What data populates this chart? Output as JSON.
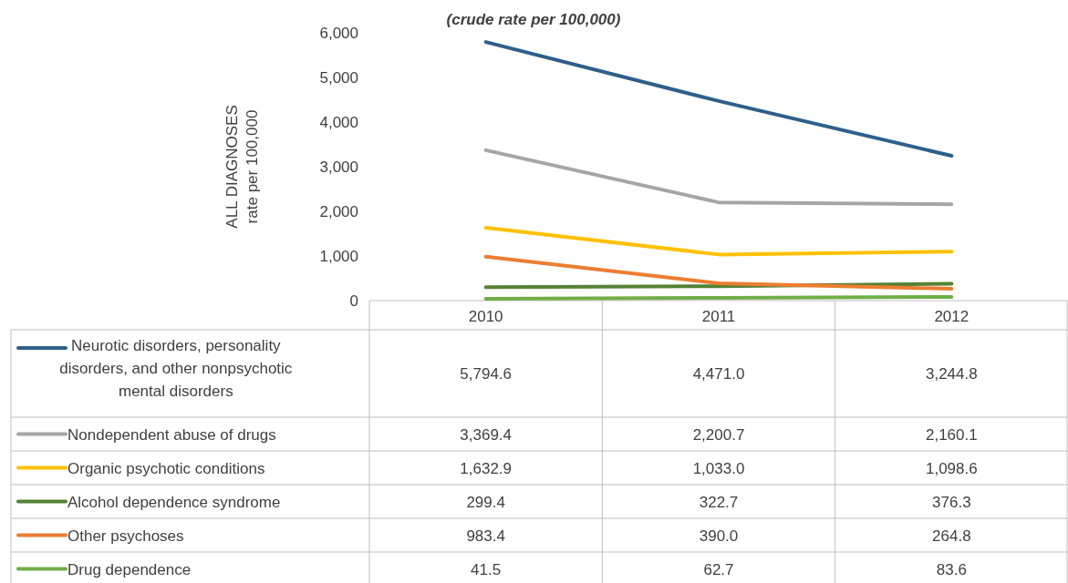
{
  "chart_data": {
    "type": "line",
    "subtitle": "(crude rate per 100,000)",
    "ylabel": "ALL DIAGNOSES\nrate per 100,000",
    "categories": [
      "2010",
      "2011",
      "2012"
    ],
    "series": [
      {
        "name": "Neurotic disorders, personality disorders, and other nonpsychotic mental disorders",
        "color": "#2e5f8a",
        "values": [
          5794.6,
          4471.0,
          3244.8
        ],
        "value_labels": [
          "5,794.6",
          "4,471.0",
          "3,244.8"
        ]
      },
      {
        "name": "Nondependent abuse of drugs",
        "color": "#a5a5a5",
        "values": [
          3369.4,
          2200.7,
          2160.1
        ],
        "value_labels": [
          "3,369.4",
          "2,200.7",
          "2,160.1"
        ]
      },
      {
        "name": "Organic psychotic conditions",
        "color": "#ffc000",
        "values": [
          1632.9,
          1033.0,
          1098.6
        ],
        "value_labels": [
          "1,632.9",
          "1,033.0",
          "1,098.6"
        ]
      },
      {
        "name": "Alcohol dependence syndrome",
        "color": "#548235",
        "values": [
          299.4,
          322.7,
          376.3
        ],
        "value_labels": [
          "299.4",
          "322.7",
          "376.3"
        ]
      },
      {
        "name": "Other psychoses",
        "color": "#ed7d31",
        "values": [
          983.4,
          390.0,
          264.8
        ],
        "value_labels": [
          "983.4",
          "390.0",
          "264.8"
        ]
      },
      {
        "name": "Drug dependence",
        "color": "#70ad47",
        "values": [
          41.5,
          62.7,
          83.6
        ],
        "value_labels": [
          "41.5",
          "62.7",
          "83.6"
        ]
      }
    ],
    "ylim": [
      0,
      6000
    ],
    "yticks": [
      {
        "value": 0,
        "label": "0"
      },
      {
        "value": 1000,
        "label": "1,000"
      },
      {
        "value": 2000,
        "label": "2,000"
      },
      {
        "value": 3000,
        "label": "3,000"
      },
      {
        "value": 4000,
        "label": "4,000"
      },
      {
        "value": 5000,
        "label": "5,000"
      },
      {
        "value": 6000,
        "label": "6,000"
      }
    ],
    "legend": "bottom",
    "marker": "none",
    "line_style": "solid"
  }
}
